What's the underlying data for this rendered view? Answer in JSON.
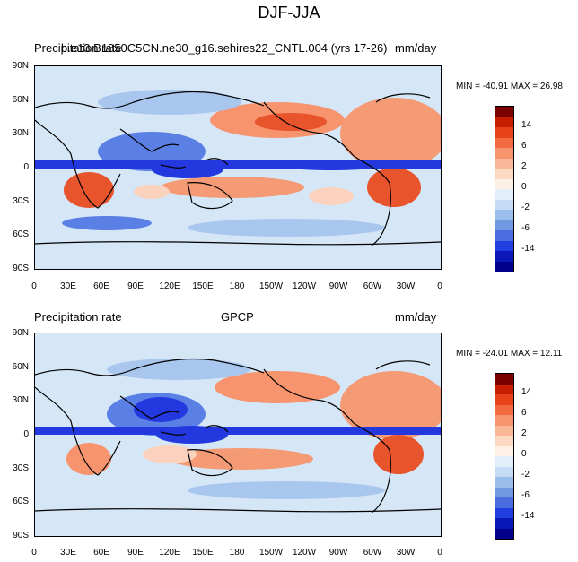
{
  "title": "DJF-JJA",
  "panels": [
    {
      "left_label": "Precipitation rate",
      "center_label": "b.e13.B1850C5CN.ne30_g16.sehires22_CNTL.004 (yrs 17-26)",
      "right_label": "mm/day",
      "stats": "MIN = -40.91 MAX =  26.98"
    },
    {
      "left_label": "Precipitation rate",
      "center_label": "GPCP",
      "right_label": "mm/day",
      "stats": "MIN = -24.01 MAX =  12.11"
    }
  ],
  "axes": {
    "lat_labels": [
      "90N",
      "60N",
      "30N",
      "0",
      "30S",
      "60S",
      "90S"
    ],
    "lon_labels": [
      "0",
      "30E",
      "60E",
      "90E",
      "120E",
      "150E",
      "180",
      "150W",
      "120W",
      "90W",
      "60W",
      "30W",
      "0"
    ]
  },
  "colorbar": {
    "labels": [
      "14",
      "6",
      "2",
      "0",
      "-2",
      "-6",
      "-14"
    ],
    "colors": [
      "#7a0000",
      "#c81e00",
      "#e8421a",
      "#f26a3f",
      "#f7936d",
      "#fab898",
      "#fcd9c3",
      "#fdf1e6",
      "#e3eefb",
      "#c6dcf5",
      "#9bbdec",
      "#7099e3",
      "#4a6ee0",
      "#1f3fe0",
      "#0a18b8",
      "#00008a"
    ]
  },
  "map_colors": {
    "background": "#d5e6f7",
    "strong_wet": "#2438e0",
    "moderate_wet": "#5a80e6",
    "light_wet": "#a9c6ef",
    "light_dry": "#fbd2bd",
    "moderate_dry": "#f49a74",
    "strong_dry": "#e8542b",
    "coast": "#000000"
  }
}
